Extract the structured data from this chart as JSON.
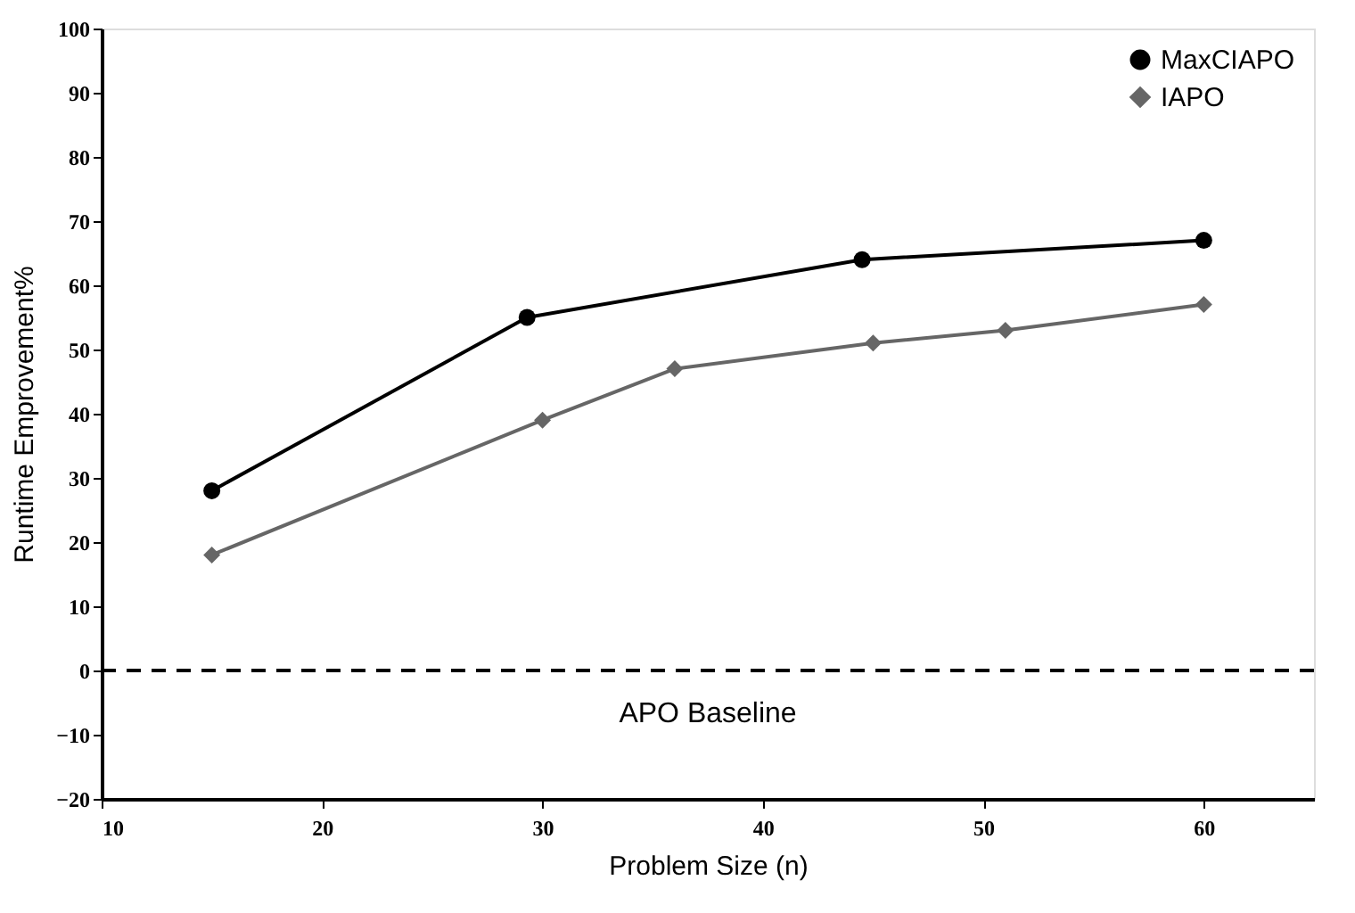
{
  "chart_data": {
    "type": "line",
    "xlabel": "Problem Size (n)",
    "ylabel": "Runtime Emprovement%",
    "xlim": [
      10,
      65
    ],
    "xticks": [
      10,
      20,
      30,
      40,
      50,
      60
    ],
    "ylim": [
      -20,
      100
    ],
    "yticks": [
      -20,
      -10,
      0,
      10,
      20,
      30,
      40,
      50,
      60,
      70,
      80,
      90,
      100
    ],
    "series": [
      {
        "name": "MaxCIAPO",
        "color": "#000000",
        "marker": "circle",
        "x": [
          15,
          29.3,
          44.5,
          60
        ],
        "values": [
          28,
          55,
          64,
          67
        ]
      },
      {
        "name": "IAPO",
        "color": "#666666",
        "marker": "diamond",
        "x": [
          15,
          30,
          36,
          45,
          51,
          60
        ],
        "values": [
          18,
          39,
          47,
          51,
          53,
          57
        ]
      }
    ],
    "ref_lines": [
      {
        "axis": "y",
        "value": 0,
        "label": "APO Baseline",
        "color": "#000000",
        "line_style": "dashed"
      }
    ],
    "legend": "top right",
    "grid": false
  }
}
